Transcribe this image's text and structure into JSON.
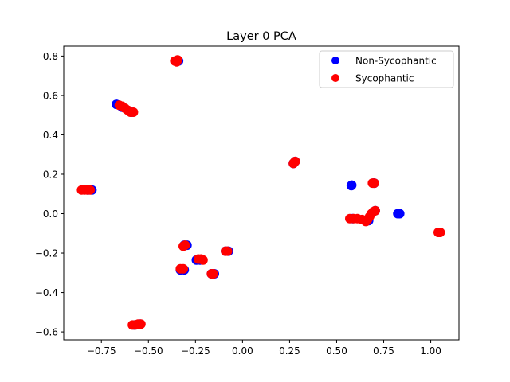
{
  "chart_data": {
    "type": "scatter",
    "title": "Layer 0 PCA",
    "xlabel": "",
    "ylabel": "",
    "xlim": [
      -0.95,
      1.15
    ],
    "ylim": [
      -0.64,
      0.85
    ],
    "xticks": [
      -0.75,
      -0.5,
      -0.25,
      0.0,
      0.25,
      0.5,
      0.75,
      1.0
    ],
    "xtick_labels": [
      "−0.75",
      "−0.50",
      "−0.25",
      "0.00",
      "0.25",
      "0.50",
      "0.75",
      "1.00"
    ],
    "yticks": [
      -0.6,
      -0.4,
      -0.2,
      0.0,
      0.2,
      0.4,
      0.6,
      0.8
    ],
    "ytick_labels": [
      "−0.6",
      "−0.4",
      "−0.2",
      "0.0",
      "0.2",
      "0.4",
      "0.6",
      "0.8"
    ],
    "grid": false,
    "legend_position": "top-right",
    "series": [
      {
        "name": "Non-Sycophantic",
        "color": "#0000ff",
        "points": [
          [
            -0.8,
            0.12
          ],
          [
            -0.82,
            0.12
          ],
          [
            -0.67,
            0.555
          ],
          [
            -0.64,
            0.54
          ],
          [
            -0.59,
            0.515
          ],
          [
            -0.355,
            0.775
          ],
          [
            -0.34,
            0.775
          ],
          [
            -0.31,
            -0.16
          ],
          [
            -0.295,
            -0.16
          ],
          [
            -0.33,
            -0.285
          ],
          [
            -0.31,
            -0.285
          ],
          [
            -0.245,
            -0.235
          ],
          [
            -0.225,
            -0.235
          ],
          [
            -0.165,
            -0.305
          ],
          [
            -0.15,
            -0.305
          ],
          [
            -0.09,
            -0.19
          ],
          [
            -0.075,
            -0.19
          ],
          [
            -0.575,
            -0.565
          ],
          [
            -0.545,
            -0.56
          ],
          [
            0.27,
            0.255
          ],
          [
            0.28,
            0.265
          ],
          [
            0.578,
            0.142
          ],
          [
            0.58,
            0.145
          ],
          [
            0.695,
            0.155
          ],
          [
            0.7,
            0.155
          ],
          [
            0.835,
            0.0
          ],
          [
            0.825,
            0.0
          ],
          [
            0.705,
            0.015
          ],
          [
            0.67,
            -0.035
          ],
          [
            0.585,
            -0.025
          ],
          [
            1.045,
            -0.095
          ]
        ]
      },
      {
        "name": "Sycophantic",
        "color": "#ff0000",
        "points": [
          [
            -0.855,
            0.12
          ],
          [
            -0.84,
            0.12
          ],
          [
            -0.825,
            0.12
          ],
          [
            -0.81,
            0.12
          ],
          [
            -0.655,
            0.55
          ],
          [
            -0.64,
            0.545
          ],
          [
            -0.625,
            0.535
          ],
          [
            -0.61,
            0.525
          ],
          [
            -0.595,
            0.515
          ],
          [
            -0.58,
            0.515
          ],
          [
            -0.36,
            0.775
          ],
          [
            -0.35,
            0.77
          ],
          [
            -0.345,
            0.78
          ],
          [
            -0.315,
            -0.165
          ],
          [
            -0.305,
            -0.16
          ],
          [
            -0.33,
            -0.28
          ],
          [
            -0.315,
            -0.28
          ],
          [
            -0.235,
            -0.23
          ],
          [
            -0.22,
            -0.23
          ],
          [
            -0.21,
            -0.235
          ],
          [
            -0.165,
            -0.305
          ],
          [
            -0.155,
            -0.305
          ],
          [
            -0.09,
            -0.19
          ],
          [
            -0.08,
            -0.19
          ],
          [
            -0.585,
            -0.565
          ],
          [
            -0.57,
            -0.565
          ],
          [
            -0.555,
            -0.56
          ],
          [
            -0.54,
            -0.56
          ],
          [
            0.27,
            0.255
          ],
          [
            0.275,
            0.26
          ],
          [
            0.28,
            0.265
          ],
          [
            0.69,
            0.155
          ],
          [
            0.7,
            0.155
          ],
          [
            0.57,
            -0.025
          ],
          [
            0.59,
            -0.025
          ],
          [
            0.61,
            -0.025
          ],
          [
            0.635,
            -0.03
          ],
          [
            0.655,
            -0.04
          ],
          [
            0.665,
            -0.03
          ],
          [
            0.675,
            -0.015
          ],
          [
            0.685,
            0.0
          ],
          [
            0.695,
            0.01
          ],
          [
            0.705,
            0.015
          ],
          [
            1.04,
            -0.095
          ],
          [
            1.05,
            -0.095
          ]
        ]
      }
    ]
  }
}
